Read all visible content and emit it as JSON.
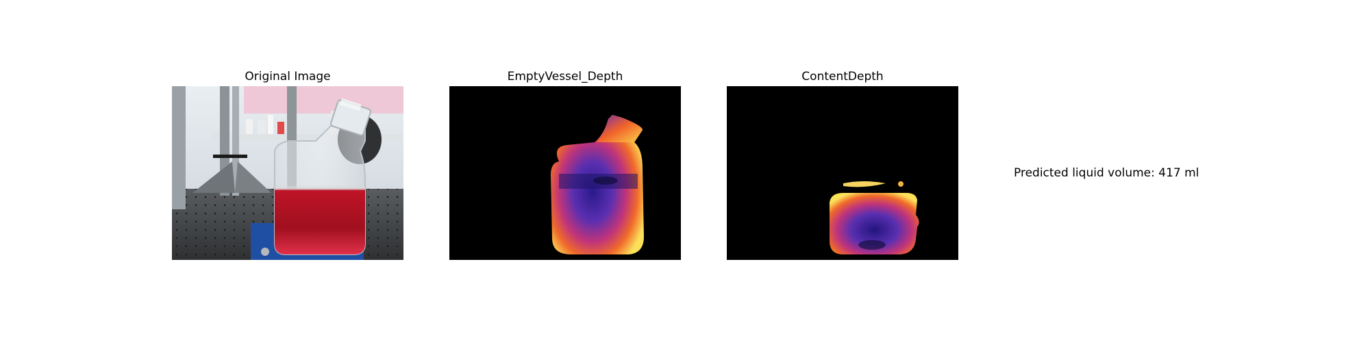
{
  "panels": [
    {
      "title": "Original Image"
    },
    {
      "title": "EmptyVessel_Depth"
    },
    {
      "title": "ContentDepth"
    }
  ],
  "prediction": {
    "text": "Predicted liquid volume: 417 ml"
  }
}
